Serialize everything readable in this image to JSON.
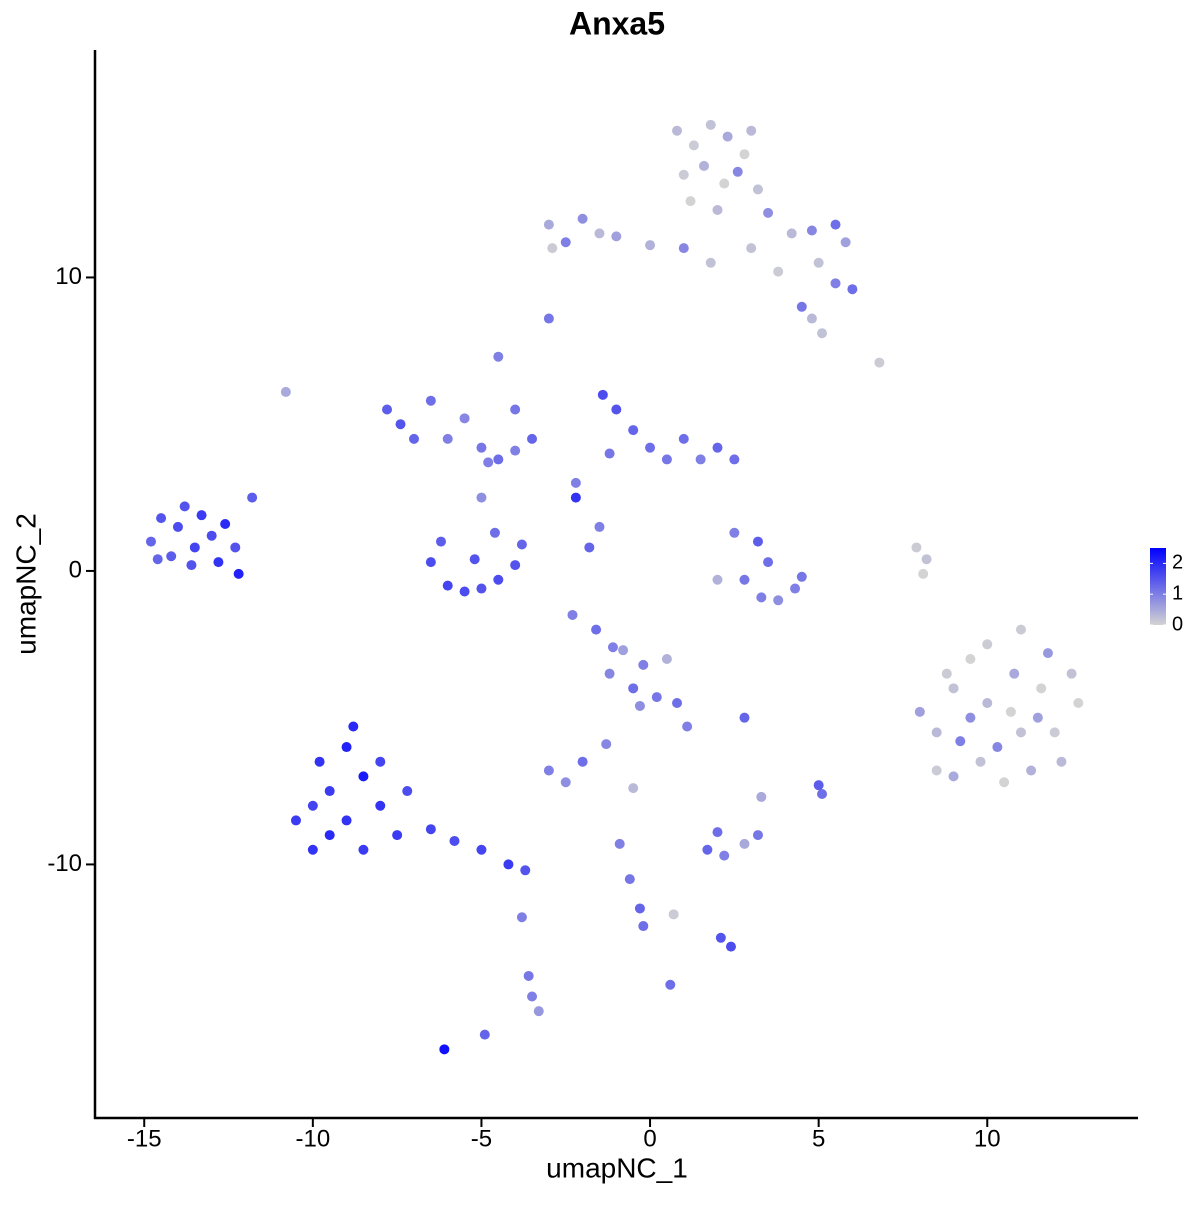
{
  "chart_data": {
    "type": "scatter",
    "title": "Anxa5",
    "x_label": "umapNC_1",
    "y_label": "umapNC_2",
    "xlim": [
      -16.46,
      14.47
    ],
    "ylim": [
      -18.64,
      17.75
    ],
    "xticks": [
      -15,
      -10,
      -5,
      0,
      5,
      10
    ],
    "yticks": [
      -10,
      0,
      10
    ],
    "clim": [
      0,
      2.5
    ],
    "colorbar_ticks": [
      0,
      1,
      2
    ],
    "low_color": "#d3d3d3",
    "high_color": "#0000ff",
    "x": [
      -14.8,
      -14.5,
      -14.2,
      -14,
      -13.8,
      -13.5,
      -13.3,
      -13,
      -12.8,
      -12.6,
      -12.3,
      -12.2,
      -11.8,
      -13.6,
      -14.6,
      -10.5,
      -10,
      -10,
      -9.5,
      -9.5,
      -9,
      -9,
      -8.8,
      -8.5,
      -8.5,
      -8,
      -8,
      -7.5,
      -7.2,
      -6.5,
      -5.8,
      -5,
      -4.2,
      -3.7,
      -9.8,
      -6.5,
      -6,
      -5.5,
      -5,
      -4.5,
      -4,
      -3.8,
      -6.2,
      -5.2,
      -4.6,
      -5,
      -4.8,
      -7.8,
      -7.4,
      -7,
      -6.5,
      -6,
      -5.5,
      -5,
      -4.5,
      -4,
      -3.5,
      -4.5,
      -4,
      -10.8,
      -1.4,
      -1,
      -0.5,
      0,
      0.5,
      1,
      1.5,
      2,
      2.5,
      -1.2,
      -2.2,
      -1.8,
      -2.2,
      -1.5,
      0.8,
      1.3,
      1.8,
      2.3,
      2.8,
      3,
      1,
      1.6,
      2.2,
      2.6,
      3.2,
      1.2,
      2,
      3.5,
      4.2,
      4.8,
      5.5,
      5.8,
      5,
      5.5,
      6,
      4.5,
      4.8,
      3.8,
      3,
      -3,
      -2.5,
      -2,
      -1.5,
      -1,
      0,
      1,
      1.8,
      -2.9,
      -3,
      6.8,
      5.1,
      8,
      8.5,
      8.5,
      9,
      9,
      9.5,
      9.5,
      9.8,
      10,
      10,
      10.3,
      10.5,
      10.8,
      11,
      11,
      11.3,
      11.6,
      11.8,
      12,
      12.2,
      12.5,
      12.7,
      9.2,
      10.7,
      11.5,
      8.8,
      7.9,
      8.1,
      8.2,
      2.5,
      3.2,
      3.5,
      2.8,
      3.3,
      3.8,
      4.3,
      2,
      4.5,
      -1.2,
      -0.8,
      -0.5,
      -0.2,
      0.2,
      0.5,
      0.8,
      1.1,
      -0.3,
      -3,
      -2.5,
      -2,
      -1.3,
      -0.5,
      2.8,
      5,
      5.1,
      3.3,
      1.7,
      2.2,
      2.8,
      3.2,
      2,
      -0.9,
      -0.6,
      -0.3,
      -0.2,
      0.7,
      2.1,
      2.4,
      0.6,
      -3.6,
      -3.5,
      -3.3,
      -3.8,
      -6.1,
      -4.9,
      -2.3,
      -1.6,
      -1.1
    ],
    "y": [
      1.0,
      1.8,
      0.5,
      1.5,
      2.2,
      0.8,
      1.9,
      1.2,
      0.3,
      1.6,
      0.8,
      -0.1,
      2.5,
      0.2,
      0.4,
      -8.5,
      -9.5,
      -8,
      -7.5,
      -9,
      -6,
      -8.5,
      -5.3,
      -7,
      -9.5,
      -8,
      -6.5,
      -9,
      -7.5,
      -8.8,
      -9.2,
      -9.5,
      -10,
      -10.2,
      -6.5,
      0.3,
      -0.5,
      -0.7,
      -0.6,
      -0.3,
      0.2,
      0.9,
      1.0,
      0.4,
      1.3,
      2.5,
      3.7,
      5.5,
      5.0,
      4.5,
      5.8,
      4.5,
      5.2,
      4.2,
      3.8,
      4.1,
      4.5,
      7.3,
      5.5,
      6.1,
      6.0,
      5.5,
      4.8,
      4.2,
      3.8,
      4.5,
      3.8,
      4.2,
      3.8,
      4.0,
      2.5,
      0.8,
      3.0,
      1.5,
      15.0,
      14.5,
      15.2,
      14.8,
      14.2,
      15,
      13.5,
      13.8,
      13.2,
      13.6,
      13.0,
      12.6,
      12.3,
      12.2,
      11.5,
      11.6,
      11.8,
      11.2,
      10.5,
      9.8,
      9.6,
      9.0,
      8.6,
      10.2,
      11,
      11.8,
      11.2,
      12,
      11.5,
      11.4,
      11.1,
      11.0,
      10.5,
      11.0,
      8.6,
      7.1,
      8.1,
      -4.8,
      -5.5,
      -6.8,
      -4,
      -7,
      -3,
      -5,
      -6.5,
      -2.5,
      -4.5,
      -6,
      -7.2,
      -3.5,
      -5.5,
      -2,
      -6.8,
      -4,
      -2.8,
      -5.5,
      -6.5,
      -3.5,
      -4.5,
      -5.8,
      -4.8,
      -5,
      -3.5,
      0.8,
      -0.1,
      0.4,
      1.3,
      1.0,
      0.3,
      -0.3,
      -0.9,
      -1.0,
      -0.6,
      -0.3,
      -0.2,
      -3.5,
      -2.7,
      -4.0,
      -3.2,
      -4.3,
      -3.0,
      -4.5,
      -5.3,
      -4.6,
      -6.8,
      -7.2,
      -6.5,
      -5.9,
      -7.4,
      -5.0,
      -7.3,
      -7.6,
      -7.7,
      -9.5,
      -9.7,
      -9.3,
      -9.0,
      -8.9,
      -9.3,
      -10.5,
      -11.5,
      -12.1,
      -11.7,
      -12.5,
      -12.8,
      -14.1,
      -13.8,
      -14.5,
      -15.0,
      -11.8,
      -16.3,
      -15.8,
      -1.5,
      -2.0,
      -2.6
    ],
    "values": [
      1.3,
      1.5,
      1.4,
      1.6,
      1.5,
      1.7,
      1.8,
      1.6,
      1.9,
      2.0,
      1.5,
      2.1,
      1.4,
      1.5,
      1.3,
      1.8,
      1.9,
      1.7,
      1.8,
      2.0,
      2.1,
      1.9,
      2.0,
      2.2,
      1.8,
      1.9,
      1.7,
      1.8,
      1.6,
      1.7,
      1.6,
      1.7,
      1.8,
      1.5,
      1.9,
      1.6,
      1.7,
      1.6,
      1.5,
      1.6,
      1.5,
      1.3,
      1.4,
      1.5,
      1.2,
      0.8,
      1.0,
      1.4,
      1.5,
      1.3,
      1.2,
      1.0,
      0.9,
      1.1,
      1.2,
      1.0,
      1.3,
      1.0,
      1.1,
      0.5,
      1.6,
      1.5,
      1.3,
      1.2,
      1.1,
      1.2,
      1.0,
      1.3,
      1.2,
      1.1,
      1.9,
      1.3,
      1.0,
      1.0,
      0.3,
      0.1,
      0.2,
      0.5,
      0.0,
      0.3,
      0.1,
      0.4,
      0.0,
      0.9,
      0.2,
      0.0,
      0.3,
      0.8,
      0.3,
      0.9,
      1.2,
      0.6,
      0.2,
      1.0,
      1.2,
      1.1,
      0.3,
      0.1,
      0.2,
      0.5,
      1.0,
      0.8,
      0.3,
      0.6,
      0.4,
      0.9,
      0.2,
      0.1,
      1.1,
      0.1,
      0.2,
      0.6,
      0.3,
      0.1,
      0.2,
      0.5,
      0.0,
      0.8,
      0.2,
      0.1,
      0.3,
      0.9,
      0.0,
      0.5,
      0.2,
      0.1,
      0.4,
      0.0,
      0.7,
      0.1,
      0.3,
      0.2,
      0.0,
      1.0,
      0.0,
      0.6,
      0.1,
      0.1,
      0.0,
      0.2,
      1.0,
      1.4,
      1.2,
      1.1,
      1.0,
      0.8,
      1.0,
      0.4,
      1.1,
      0.9,
      0.6,
      1.2,
      1.0,
      1.1,
      0.4,
      1.2,
      1.0,
      0.8,
      1.0,
      0.8,
      1.2,
      0.9,
      0.3,
      1.3,
      1.4,
      1.2,
      0.5,
      1.3,
      1.0,
      0.5,
      1.1,
      1.2,
      1.0,
      1.1,
      1.3,
      1.2,
      0.1,
      1.5,
      1.6,
      1.2,
      1.1,
      1.0,
      0.7,
      1.0,
      2.3,
      1.3,
      1.0,
      1.2,
      1.0
    ]
  }
}
